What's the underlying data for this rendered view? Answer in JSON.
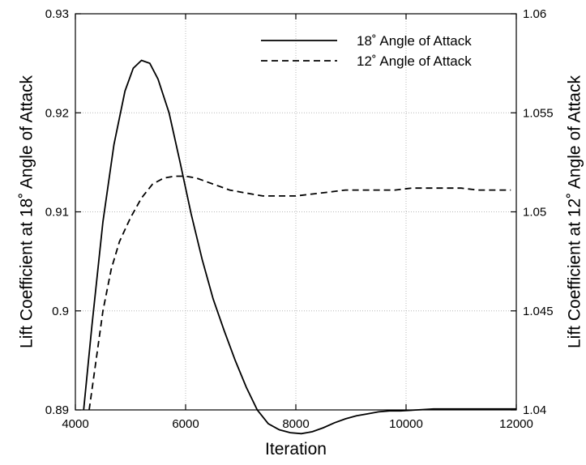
{
  "chart_data": {
    "type": "line",
    "xlabel": "Iteration",
    "ylabel_left": "Lift Coefficient at 18˚ Angle of Attack",
    "ylabel_right": "Lift Coefficient at 12˚ Angle of Attack",
    "xlim": [
      4000,
      12000
    ],
    "ylim_left": [
      0.89,
      0.93
    ],
    "ylim_right": [
      1.04,
      1.06
    ],
    "x_ticks": [
      4000,
      6000,
      8000,
      10000,
      12000
    ],
    "x_tick_labels": [
      "4000",
      "6000",
      "8000",
      "10000",
      "12000"
    ],
    "y_ticks_left": [
      0.89,
      0.9,
      0.91,
      0.92,
      0.93
    ],
    "y_tick_labels_left": [
      "0.89",
      "0.9",
      "0.91",
      "0.92",
      "0.93"
    ],
    "y_ticks_right": [
      1.04,
      1.045,
      1.05,
      1.055,
      1.06
    ],
    "y_tick_labels_right": [
      "1.04",
      "1.045",
      "1.05",
      "1.055",
      "1.06"
    ],
    "grid": true,
    "legend_position": "top-right",
    "series": [
      {
        "name": "18˚ Angle of Attack",
        "axis": "left",
        "style": "solid",
        "x": [
          4150,
          4300,
          4500,
          4700,
          4900,
          5050,
          5200,
          5350,
          5500,
          5700,
          5900,
          6100,
          6300,
          6500,
          6700,
          6900,
          7100,
          7300,
          7500,
          7700,
          7900,
          8100,
          8300,
          8500,
          8700,
          8900,
          9100,
          9300,
          9500,
          9700,
          9900,
          10200,
          10500,
          10800,
          11100,
          11400,
          11700,
          12000
        ],
        "y": [
          0.89,
          0.8985,
          0.909,
          0.9168,
          0.9222,
          0.9245,
          0.9253,
          0.925,
          0.9234,
          0.92,
          0.915,
          0.9098,
          0.9052,
          0.9012,
          0.898,
          0.895,
          0.8923,
          0.89,
          0.8886,
          0.888,
          0.8877,
          0.8876,
          0.8878,
          0.8882,
          0.8887,
          0.8891,
          0.8894,
          0.8896,
          0.8898,
          0.8899,
          0.8899,
          0.89,
          0.8901,
          0.8901,
          0.8901,
          0.8901,
          0.8901,
          0.8901
        ]
      },
      {
        "name": "12˚ Angle of Attack",
        "axis": "right",
        "style": "dashed",
        "x": [
          4250,
          4300,
          4400,
          4500,
          4650,
          4800,
          5000,
          5200,
          5400,
          5600,
          5800,
          6000,
          6200,
          6400,
          6600,
          6800,
          7000,
          7200,
          7400,
          7600,
          7800,
          8000,
          8300,
          8600,
          8900,
          9200,
          9500,
          9800,
          10100,
          10400,
          10700,
          11000,
          11300,
          11600,
          11900
        ],
        "y": [
          1.04,
          1.041,
          1.043,
          1.045,
          1.0471,
          1.0485,
          1.0497,
          1.0507,
          1.0514,
          1.0517,
          1.0518,
          1.0518,
          1.0517,
          1.0515,
          1.0513,
          1.0511,
          1.051,
          1.0509,
          1.0508,
          1.0508,
          1.0508,
          1.0508,
          1.0509,
          1.051,
          1.0511,
          1.0511,
          1.0511,
          1.0511,
          1.0512,
          1.0512,
          1.0512,
          1.0512,
          1.0511,
          1.0511,
          1.0511
        ]
      }
    ]
  }
}
